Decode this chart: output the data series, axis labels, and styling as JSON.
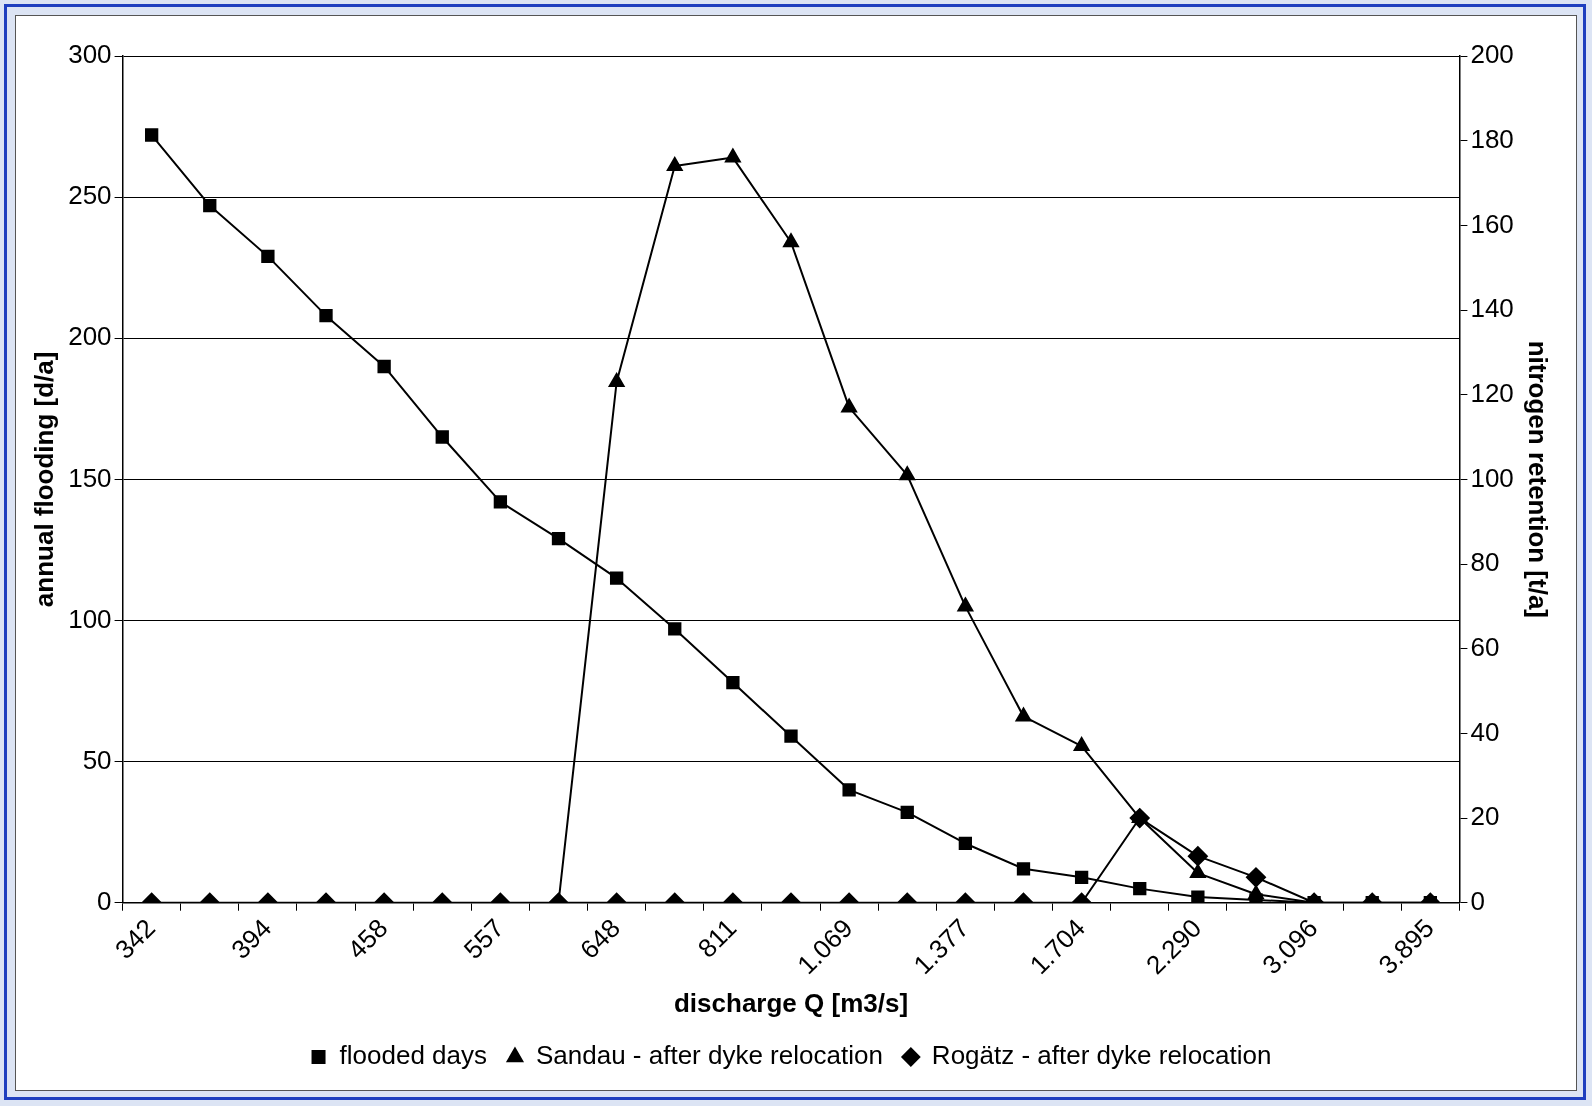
{
  "chart_data": {
    "type": "line",
    "xlabel": "discharge Q [m3/s]",
    "ylabel": "annual flooding [d/a]",
    "y2label": "nitrogen retention [t/a]",
    "categories": [
      "342",
      null,
      "394",
      null,
      "458",
      null,
      "557",
      null,
      "648",
      null,
      "811",
      null,
      "1.069",
      null,
      "1.377",
      null,
      "1.704",
      null,
      "2.290",
      null,
      "3.096",
      null,
      "3.895"
    ],
    "series": [
      {
        "name": "flooded days",
        "color": "#000000",
        "marker": "square",
        "values": [
          272,
          247,
          229,
          208,
          190,
          165,
          142,
          129,
          115,
          97,
          78,
          59,
          40,
          32,
          21,
          12,
          9,
          5,
          2,
          1,
          0,
          0,
          0
        ]
      },
      {
        "name": "Sandau - after dyke relocation",
        "color": "#000000",
        "marker": "triangle",
        "axis": "y2",
        "values": [
          null,
          null,
          null,
          null,
          null,
          null,
          null,
          0,
          123,
          174,
          176,
          156,
          117,
          101,
          70,
          44,
          37,
          20,
          7,
          2,
          0,
          null,
          null
        ]
      },
      {
        "name": "Rogätz - after dyke relocation",
        "color": "#000000",
        "marker": "diamond",
        "axis": "y2",
        "values": [
          0,
          0,
          0,
          0,
          0,
          0,
          0,
          0,
          0,
          0,
          0,
          0,
          0,
          0,
          0,
          0,
          0,
          20,
          11,
          6,
          0,
          0,
          0
        ]
      }
    ],
    "ylim": [
      0,
      300
    ],
    "yticks": [
      0,
      50,
      100,
      150,
      200,
      250,
      300
    ],
    "y2lim": [
      0,
      200
    ],
    "y2ticks": [
      0,
      20,
      40,
      60,
      80,
      100,
      120,
      140,
      160,
      180,
      200
    ],
    "grid": "y",
    "legend": "bottom",
    "line_style": "solid"
  }
}
